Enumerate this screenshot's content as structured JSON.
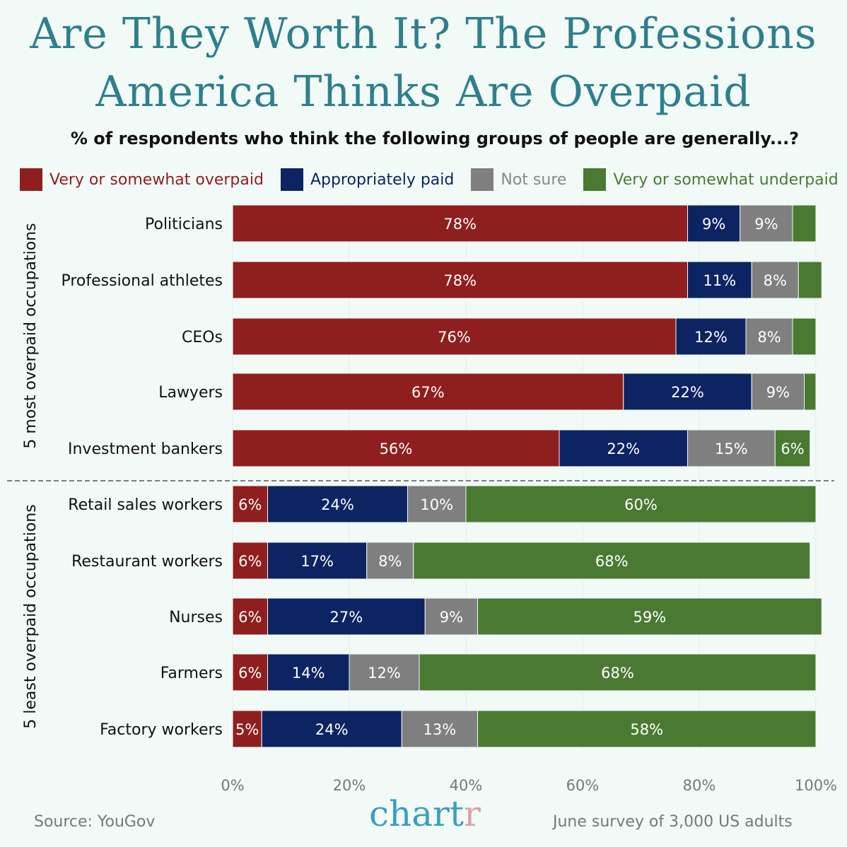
{
  "title_line1": "Are They Worth It? The Professions",
  "title_line2": "America Thinks Are Overpaid",
  "subtitle": "% of respondents who think the following groups of people are generally...?",
  "source": "Source: YouGov",
  "note": "June survey of 3,000 US adults",
  "logo": {
    "main": "chart",
    "accent": "r",
    "main_color": "#3a9fbe",
    "accent_color": "#d9a3a3"
  },
  "chart_data": {
    "type": "bar",
    "orientation": "horizontal",
    "stacked": true,
    "xlim": [
      0,
      100
    ],
    "x_ticks": [
      "0%",
      "20%",
      "40%",
      "60%",
      "80%",
      "100%"
    ],
    "groups": [
      {
        "label": "5 most overpaid occupations",
        "rows": [
          0,
          4
        ]
      },
      {
        "label": "5 least overpaid occupations",
        "rows": [
          5,
          9
        ]
      }
    ],
    "categories": [
      "Politicians",
      "Professional athletes",
      "CEOs",
      "Lawyers",
      "Investment bankers",
      "Retail sales workers",
      "Restaurant workers",
      "Nurses",
      "Farmers",
      "Factory workers"
    ],
    "series": [
      {
        "name": "Very or somewhat overpaid",
        "color": "#8f1f1e",
        "values": [
          78,
          78,
          76,
          67,
          56,
          6,
          6,
          6,
          6,
          5
        ]
      },
      {
        "name": "Appropriately paid",
        "color": "#0d2463",
        "values": [
          9,
          11,
          12,
          22,
          22,
          24,
          17,
          27,
          14,
          24
        ]
      },
      {
        "name": "Not sure",
        "color": "#7f7f7f",
        "values": [
          9,
          8,
          8,
          9,
          15,
          10,
          8,
          9,
          12,
          13
        ]
      },
      {
        "name": "Very or somewhat underpaid",
        "color": "#4a7a31",
        "values": [
          4,
          4,
          4,
          2,
          6,
          60,
          68,
          59,
          68,
          58
        ]
      }
    ],
    "labelled": [
      [
        true,
        true,
        true,
        true,
        true,
        true,
        true,
        true,
        true,
        true
      ],
      [
        true,
        true,
        true,
        true,
        true,
        true,
        true,
        true,
        true,
        true
      ],
      [
        true,
        true,
        true,
        true,
        true,
        true,
        true,
        true,
        true,
        true
      ],
      [
        false,
        false,
        false,
        false,
        true,
        true,
        true,
        true,
        true,
        true
      ]
    ]
  }
}
